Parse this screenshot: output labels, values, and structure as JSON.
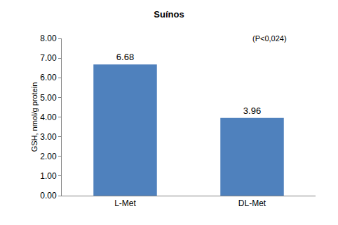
{
  "chart_data": {
    "type": "bar",
    "title": "Suínos",
    "y_label": "GSH, nmol/g protein",
    "categories": [
      "L-Met",
      "DL-Met"
    ],
    "values": [
      6.68,
      3.96
    ],
    "color": "#4f81bd",
    "ylim": [
      0,
      8
    ],
    "yticks": [
      {
        "value": 0,
        "label": "0.00"
      },
      {
        "value": 1,
        "label": "1.00"
      },
      {
        "value": 2,
        "label": "2.00"
      },
      {
        "value": 3,
        "label": "3.00"
      },
      {
        "value": 4,
        "label": "4.00"
      },
      {
        "value": 5,
        "label": "5.00"
      },
      {
        "value": 6,
        "label": "6.00"
      },
      {
        "value": 7,
        "label": "7.00"
      },
      {
        "value": 8,
        "label": "8.00"
      }
    ],
    "annotations": [
      "(P<0,024)"
    ],
    "data_labels": true,
    "grid": false
  }
}
